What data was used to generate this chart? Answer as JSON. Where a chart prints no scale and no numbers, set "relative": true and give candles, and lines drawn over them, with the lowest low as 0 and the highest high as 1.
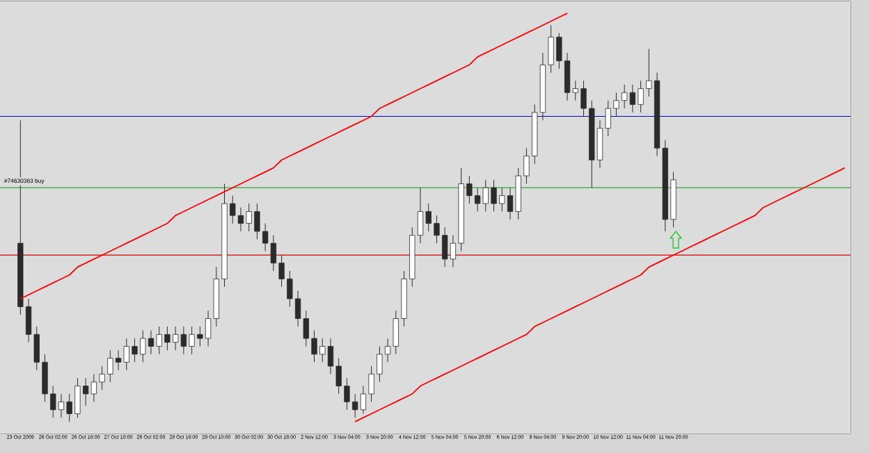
{
  "chart_data": {
    "type": "candlestick",
    "relative": true,
    "categories": [
      "23 Oct 2009",
      null,
      null,
      null,
      "26 Oct 02:00",
      null,
      null,
      null,
      "26 Oct 18:00",
      null,
      null,
      null,
      "27 Oct 10:00",
      null,
      null,
      null,
      "28 Oct 02:00",
      null,
      null,
      null,
      "28 Oct 18:00",
      null,
      null,
      null,
      "29 Oct 10:00",
      null,
      null,
      null,
      "30 Oct 02:00",
      null,
      null,
      null,
      "30 Oct 18:00",
      null,
      null,
      null,
      "2 Nov 12:00",
      null,
      null,
      null,
      "3 Nov 04:00",
      null,
      null,
      null,
      "3 Nov 20:00",
      null,
      null,
      null,
      "4 Nov 12:00",
      null,
      null,
      null,
      "5 Nov 04:00",
      null,
      null,
      null,
      "5 Nov 20:00",
      null,
      null,
      null,
      "6 Nov 12:00",
      null,
      null,
      null,
      "9 Nov 04:00",
      null,
      null,
      null,
      "9 Nov 20:00",
      null,
      null,
      null,
      "10 Nov 12:00",
      null,
      null,
      null,
      "11 Nov 04:00",
      null,
      null,
      null,
      "11 Nov 20:00",
      null,
      null,
      null,
      null,
      null,
      null,
      null,
      null,
      null,
      null,
      null,
      null,
      null,
      null,
      null,
      null,
      null,
      null,
      null,
      null,
      null
    ],
    "series": [
      {
        "color": "#2b2b2b",
        "ohlc": [
          [
            0.45,
            0.76,
            0.27,
            0.29
          ],
          [
            0.29,
            0.31,
            0.2,
            0.22
          ],
          [
            0.22,
            0.24,
            0.13,
            0.15
          ],
          [
            0.15,
            0.17,
            0.05,
            0.07
          ],
          [
            0.07,
            0.09,
            0.01,
            0.03
          ],
          [
            0.03,
            0.07,
            0.01,
            0.05
          ],
          [
            0.05,
            0.07,
            0,
            0.02
          ],
          [
            0.02,
            0.11,
            0.01,
            0.09
          ],
          [
            0.09,
            0.11,
            0.04,
            0.07
          ],
          [
            0.07,
            0.12,
            0.05,
            0.1
          ],
          [
            0.1,
            0.14,
            0.08,
            0.12
          ],
          [
            0.12,
            0.18,
            0.1,
            0.16
          ],
          [
            0.16,
            0.18,
            0.13,
            0.15
          ],
          [
            0.15,
            0.21,
            0.13,
            0.19
          ],
          [
            0.19,
            0.21,
            0.15,
            0.17
          ],
          [
            0.17,
            0.23,
            0.15,
            0.21
          ],
          [
            0.21,
            0.23,
            0.17,
            0.19
          ],
          [
            0.19,
            0.24,
            0.17,
            0.22
          ],
          [
            0.22,
            0.24,
            0.18,
            0.2
          ],
          [
            0.2,
            0.24,
            0.18,
            0.22
          ],
          [
            0.22,
            0.24,
            0.17,
            0.19
          ],
          [
            0.19,
            0.24,
            0.17,
            0.22
          ],
          [
            0.22,
            0.24,
            0.19,
            0.21
          ],
          [
            0.21,
            0.28,
            0.19,
            0.26
          ],
          [
            0.26,
            0.39,
            0.24,
            0.36
          ],
          [
            0.36,
            0.6,
            0.34,
            0.55
          ],
          [
            0.55,
            0.57,
            0.5,
            0.52
          ],
          [
            0.52,
            0.54,
            0.48,
            0.5
          ],
          [
            0.5,
            0.55,
            0.48,
            0.53
          ],
          [
            0.53,
            0.55,
            0.46,
            0.48
          ],
          [
            0.48,
            0.5,
            0.43,
            0.45
          ],
          [
            0.45,
            0.47,
            0.38,
            0.4
          ],
          [
            0.4,
            0.42,
            0.34,
            0.36
          ],
          [
            0.36,
            0.38,
            0.29,
            0.31
          ],
          [
            0.31,
            0.33,
            0.24,
            0.26
          ],
          [
            0.26,
            0.28,
            0.19,
            0.21
          ],
          [
            0.21,
            0.23,
            0.15,
            0.17
          ],
          [
            0.17,
            0.21,
            0.15,
            0.19
          ],
          [
            0.19,
            0.21,
            0.12,
            0.14
          ],
          [
            0.14,
            0.16,
            0.07,
            0.09
          ],
          [
            0.09,
            0.11,
            0.03,
            0.05
          ],
          [
            0.05,
            0.07,
            0.01,
            0.03
          ],
          [
            0.03,
            0.09,
            0.02,
            0.07
          ],
          [
            0.07,
            0.14,
            0.05,
            0.12
          ],
          [
            0.12,
            0.19,
            0.1,
            0.17
          ],
          [
            0.17,
            0.21,
            0.15,
            0.19
          ],
          [
            0.19,
            0.28,
            0.17,
            0.26
          ],
          [
            0.26,
            0.38,
            0.24,
            0.36
          ],
          [
            0.36,
            0.49,
            0.34,
            0.47
          ],
          [
            0.47,
            0.59,
            0.45,
            0.53
          ],
          [
            0.53,
            0.55,
            0.48,
            0.5
          ],
          [
            0.5,
            0.52,
            0.45,
            0.47
          ],
          [
            0.47,
            0.49,
            0.39,
            0.41
          ],
          [
            0.41,
            0.47,
            0.39,
            0.45
          ],
          [
            0.45,
            0.64,
            0.43,
            0.6
          ],
          [
            0.6,
            0.62,
            0.55,
            0.57
          ],
          [
            0.57,
            0.59,
            0.53,
            0.55
          ],
          [
            0.55,
            0.61,
            0.53,
            0.59
          ],
          [
            0.59,
            0.61,
            0.53,
            0.55
          ],
          [
            0.55,
            0.59,
            0.53,
            0.57
          ],
          [
            0.57,
            0.59,
            0.51,
            0.53
          ],
          [
            0.53,
            0.64,
            0.51,
            0.62
          ],
          [
            0.62,
            0.69,
            0.6,
            0.67
          ],
          [
            0.67,
            0.8,
            0.65,
            0.78
          ],
          [
            0.78,
            0.93,
            0.76,
            0.9
          ],
          [
            0.9,
            1,
            0.88,
            0.97
          ],
          [
            0.97,
            0.98,
            0.89,
            0.91
          ],
          [
            0.91,
            0.93,
            0.81,
            0.83
          ],
          [
            0.83,
            0.86,
            0.81,
            0.84
          ],
          [
            0.84,
            0.86,
            0.77,
            0.79
          ],
          [
            0.79,
            0.81,
            0.59,
            0.66
          ],
          [
            0.66,
            0.76,
            0.64,
            0.74
          ],
          [
            0.74,
            0.81,
            0.72,
            0.79
          ],
          [
            0.79,
            0.83,
            0.77,
            0.81
          ],
          [
            0.81,
            0.85,
            0.79,
            0.83
          ],
          [
            0.83,
            0.85,
            0.78,
            0.8
          ],
          [
            0.8,
            0.86,
            0.78,
            0.84
          ],
          [
            0.84,
            0.94,
            0.82,
            0.86
          ],
          [
            0.86,
            0.88,
            0.67,
            0.69
          ],
          [
            0.69,
            0.71,
            0.48,
            0.51
          ],
          [
            0.51,
            0.63,
            0.49,
            0.61
          ],
          null,
          null,
          null,
          null,
          null,
          null,
          null,
          null,
          null,
          null,
          null,
          null,
          null,
          null,
          null,
          null,
          null,
          null,
          null,
          null,
          null
        ]
      },
      {
        "type": "line",
        "color": "#ff0000",
        "values": [
          0.31,
          0.32,
          0.33,
          0.34,
          0.35,
          0.36,
          0.37,
          0.39,
          0.4,
          0.41,
          0.42,
          0.43,
          0.44,
          0.45,
          0.46,
          0.47,
          0.48,
          0.49,
          0.5,
          0.52,
          0.53,
          0.54,
          0.55,
          0.56,
          0.57,
          0.58,
          0.59,
          0.6,
          0.61,
          0.62,
          0.63,
          0.64,
          0.66,
          0.67,
          0.68,
          0.69,
          0.7,
          0.71,
          0.72,
          0.73,
          0.74,
          0.75,
          0.76,
          0.77,
          0.79,
          0.8,
          0.81,
          0.82,
          0.83,
          0.84,
          0.85,
          0.86,
          0.87,
          0.88,
          0.89,
          0.9,
          0.92,
          0.93,
          0.94,
          0.95,
          0.96,
          0.97,
          0.98,
          0.99,
          1.0,
          1.01,
          1.02,
          1.03,
          null,
          null,
          null,
          null,
          null,
          null,
          null,
          null,
          null,
          null,
          null,
          null,
          null,
          null,
          null,
          null,
          null,
          null,
          null,
          null,
          null,
          null,
          null,
          null,
          null,
          null,
          null,
          null,
          null,
          null,
          null,
          null,
          null,
          null
        ]
      },
      {
        "type": "line",
        "color": "#ff0000",
        "values": [
          null,
          null,
          null,
          null,
          null,
          null,
          null,
          null,
          null,
          null,
          null,
          null,
          null,
          null,
          null,
          null,
          null,
          null,
          null,
          null,
          null,
          null,
          null,
          null,
          null,
          null,
          null,
          null,
          null,
          null,
          null,
          null,
          null,
          null,
          null,
          null,
          null,
          null,
          null,
          null,
          null,
          0,
          0.01,
          0.02,
          0.03,
          0.04,
          0.05,
          0.06,
          0.07,
          0.09,
          0.1,
          0.11,
          0.12,
          0.13,
          0.14,
          0.15,
          0.16,
          0.17,
          0.18,
          0.19,
          0.2,
          0.21,
          0.22,
          0.24,
          0.25,
          0.26,
          0.27,
          0.28,
          0.29,
          0.3,
          0.31,
          0.32,
          0.33,
          0.34,
          0.35,
          0.36,
          0.37,
          0.39,
          0.4,
          0.41,
          0.42,
          0.43,
          0.44,
          0.45,
          0.46,
          0.47,
          0.48,
          0.49,
          0.5,
          0.51,
          0.52,
          0.54,
          0.55,
          0.56,
          0.57,
          0.58,
          0.59,
          0.6,
          0.61,
          0.62,
          0.63,
          0.64
        ]
      }
    ],
    "ref_lines": [
      {
        "axis": "y",
        "value": 0.77,
        "color": "#0000cc"
      },
      {
        "axis": "y",
        "value": 0.59,
        "color": "#33aa33",
        "label": "#74630363 buy"
      },
      {
        "axis": "y",
        "value": 0.42,
        "color": "#cc0000"
      }
    ]
  }
}
